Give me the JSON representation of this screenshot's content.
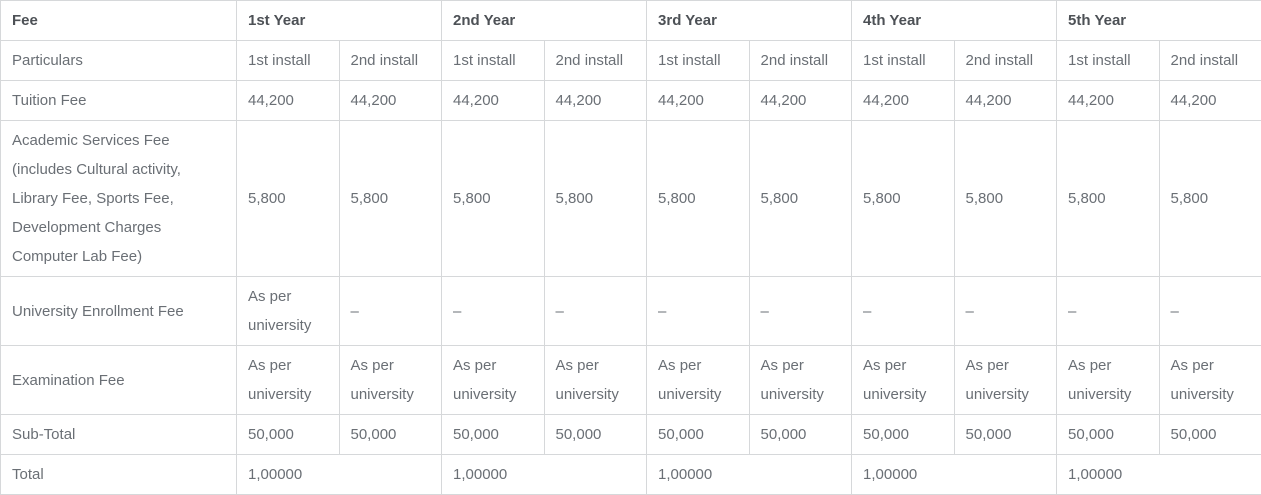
{
  "table": {
    "corner_label": "Fee",
    "particulars_label": "Particulars",
    "years": [
      "1st Year",
      "2nd Year",
      "3rd Year",
      "4th Year",
      "5th Year"
    ],
    "install_headers": [
      "1st install",
      "2nd install"
    ],
    "rows": [
      {
        "label": "Tuition Fee",
        "cells": [
          "44,200",
          "44,200",
          "44,200",
          "44,200",
          "44,200",
          "44,200",
          "44,200",
          "44,200",
          "44,200",
          "44,200"
        ]
      },
      {
        "label": "Academic Services Fee (includes Cultural activity, Library Fee, Sports Fee, Development Charges Computer Lab Fee)",
        "cells": [
          "5,800",
          "5,800",
          "5,800",
          "5,800",
          "5,800",
          "5,800",
          "5,800",
          "5,800",
          "5,800",
          "5,800"
        ]
      },
      {
        "label": "University Enrollment Fee",
        "cells": [
          "As per university",
          "–",
          "–",
          "–",
          "–",
          "–",
          "–",
          "–",
          "–",
          "–"
        ]
      },
      {
        "label": "Examination Fee",
        "cells": [
          "As per university",
          "As per university",
          "As per university",
          "As per university",
          "As per university",
          "As per university",
          "As per university",
          "As per university",
          "As per university",
          "As per university"
        ]
      },
      {
        "label": "Sub-Total",
        "cells": [
          "50,000",
          "50,000",
          "50,000",
          "50,000",
          "50,000",
          "50,000",
          "50,000",
          "50,000",
          "50,000",
          "50,000"
        ]
      }
    ],
    "total_row": {
      "label": "Total",
      "cells": [
        "1,00000",
        "1,00000",
        "1,00000",
        "1,00000",
        "1,00000"
      ]
    }
  },
  "colors": {
    "border": "#d6d8da",
    "text": "#6a6f75",
    "header_text": "#4d5156",
    "background": "#ffffff"
  }
}
